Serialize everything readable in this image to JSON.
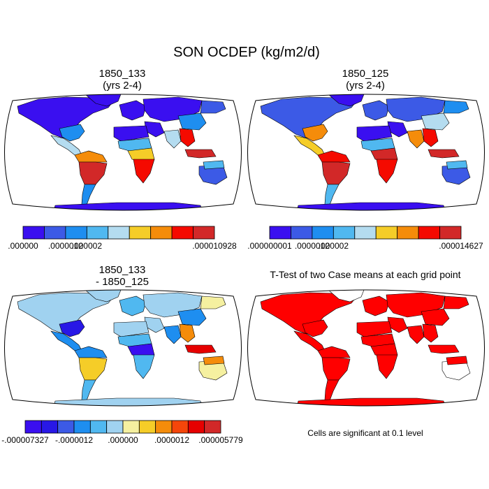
{
  "figure": {
    "title": "SON OCDEP (kg/m2/d)"
  },
  "colors": {
    "ocean": "#ffffff",
    "coast": "#000000",
    "significant": "#ff0000",
    "ramp_abs": [
      "#3a0ff0",
      "#3c5ae6",
      "#1e8ef0",
      "#50b8f0",
      "#b4dcf0",
      "#f5cd28",
      "#f58c0a",
      "#f50a00",
      "#d22828"
    ],
    "ramp_diff": [
      "#3a0ff0",
      "#2818e6",
      "#3c5ae6",
      "#1e8ef0",
      "#50b8f0",
      "#a0d2f0",
      "#f5f0a0",
      "#f5cd28",
      "#f58c0a",
      "#f5460a",
      "#e60000",
      "#d22828"
    ]
  },
  "chart_data": [
    {
      "type": "heatmap",
      "title": "1850_133",
      "subtitle": "(yrs 2-4)",
      "map": "world-robinson",
      "colorbar": {
        "bins": 9,
        "labels": [
          ".000000",
          ".0000012",
          ".000002",
          ".000010928"
        ],
        "label_bins": [
          0,
          2,
          3,
          9
        ]
      },
      "regions": [
        {
          "name": "North America",
          "bin": 0
        },
        {
          "name": "Southeastern US",
          "bin": 2
        },
        {
          "name": "Mexico and Central America",
          "bin": 4
        },
        {
          "name": "Northern South America",
          "bin": 6
        },
        {
          "name": "Amazon Basin",
          "bin": 8
        },
        {
          "name": "Southern South America",
          "bin": 2
        },
        {
          "name": "Greenland",
          "bin": 0
        },
        {
          "name": "Europe",
          "bin": 0
        },
        {
          "name": "Russia and Central Asia",
          "bin": 0
        },
        {
          "name": "Siberia",
          "bin": 1
        },
        {
          "name": "Middle East",
          "bin": 0
        },
        {
          "name": "Sahara",
          "bin": 0
        },
        {
          "name": "Sahel",
          "bin": 3
        },
        {
          "name": "Central Africa",
          "bin": 5
        },
        {
          "name": "Southern Africa",
          "bin": 7
        },
        {
          "name": "South Asia",
          "bin": 4
        },
        {
          "name": "Southeast Asia",
          "bin": 7
        },
        {
          "name": "China",
          "bin": 2
        },
        {
          "name": "Indonesia",
          "bin": 8
        },
        {
          "name": "Australia",
          "bin": 1
        },
        {
          "name": "Northern Australia",
          "bin": 3
        },
        {
          "name": "Antarctica",
          "bin": 0
        }
      ]
    },
    {
      "type": "heatmap",
      "title": "1850_125",
      "subtitle": "(yrs 2-4)",
      "map": "world-robinson",
      "colorbar": {
        "bins": 9,
        "labels": [
          ".000000001",
          ".0000012",
          ".000002",
          ".000014627"
        ],
        "label_bins": [
          0,
          2,
          3,
          9
        ]
      },
      "regions": [
        {
          "name": "North America",
          "bin": 1
        },
        {
          "name": "Southeastern US",
          "bin": 6
        },
        {
          "name": "Mexico and Central America",
          "bin": 5
        },
        {
          "name": "Northern South America",
          "bin": 7
        },
        {
          "name": "Amazon Basin",
          "bin": 8
        },
        {
          "name": "Southern South America",
          "bin": 3
        },
        {
          "name": "Greenland",
          "bin": 0
        },
        {
          "name": "Europe",
          "bin": 1
        },
        {
          "name": "Russia and Central Asia",
          "bin": 1
        },
        {
          "name": "Siberia",
          "bin": 2
        },
        {
          "name": "Middle East",
          "bin": 0
        },
        {
          "name": "Sahara",
          "bin": 0
        },
        {
          "name": "Sahel",
          "bin": 3
        },
        {
          "name": "Central Africa",
          "bin": 8
        },
        {
          "name": "Southern Africa",
          "bin": 7
        },
        {
          "name": "South Asia",
          "bin": 6
        },
        {
          "name": "Southeast Asia",
          "bin": 7
        },
        {
          "name": "China",
          "bin": 4
        },
        {
          "name": "Indonesia",
          "bin": 8
        },
        {
          "name": "Australia",
          "bin": 1
        },
        {
          "name": "Northern Australia",
          "bin": 3
        },
        {
          "name": "Antarctica",
          "bin": 0
        }
      ]
    },
    {
      "type": "heatmap",
      "title": "1850_133",
      "subtitle": "- 1850_125",
      "map": "world-robinson",
      "colorbar": {
        "bins": 12,
        "labels": [
          "-.000007327",
          "-.0000012",
          ".000000",
          ".0000012",
          ".000005779"
        ],
        "label_bins": [
          0,
          3,
          6,
          9,
          12
        ]
      },
      "regions": [
        {
          "name": "North America",
          "bin": 5
        },
        {
          "name": "Southeastern US",
          "bin": 1
        },
        {
          "name": "Mexico and Central America",
          "bin": 3
        },
        {
          "name": "Northern South America",
          "bin": 3
        },
        {
          "name": "Amazon Basin",
          "bin": 7
        },
        {
          "name": "Southern South America",
          "bin": 4
        },
        {
          "name": "Greenland",
          "bin": 5
        },
        {
          "name": "Europe",
          "bin": 4
        },
        {
          "name": "Russia and Central Asia",
          "bin": 5
        },
        {
          "name": "Siberia",
          "bin": 6
        },
        {
          "name": "Middle East",
          "bin": 5
        },
        {
          "name": "Sahara",
          "bin": 5
        },
        {
          "name": "Sahel",
          "bin": 4
        },
        {
          "name": "Central Africa",
          "bin": 0
        },
        {
          "name": "Southern Africa",
          "bin": 4
        },
        {
          "name": "South Asia",
          "bin": 3
        },
        {
          "name": "Southeast Asia",
          "bin": 8
        },
        {
          "name": "China",
          "bin": 3
        },
        {
          "name": "Indonesia",
          "bin": 10
        },
        {
          "name": "Australia",
          "bin": 6
        },
        {
          "name": "Northern Australia",
          "bin": 8
        },
        {
          "name": "Antarctica",
          "bin": 5
        }
      ]
    },
    {
      "type": "heatmap",
      "title": "T-Test of two Case means at each grid point",
      "caption": "Cells are significant at 0.1 level",
      "map": "world-robinson",
      "regions": [
        {
          "name": "North America",
          "significant": true
        },
        {
          "name": "Southeastern US",
          "significant": true
        },
        {
          "name": "Mexico and Central America",
          "significant": true
        },
        {
          "name": "Northern South America",
          "significant": true
        },
        {
          "name": "Amazon Basin",
          "significant": true
        },
        {
          "name": "Southern South America",
          "significant": true
        },
        {
          "name": "Greenland",
          "significant": false
        },
        {
          "name": "Europe",
          "significant": true
        },
        {
          "name": "Russia and Central Asia",
          "significant": true
        },
        {
          "name": "Siberia",
          "significant": true
        },
        {
          "name": "Middle East",
          "significant": true
        },
        {
          "name": "Sahara",
          "significant": true
        },
        {
          "name": "Sahel",
          "significant": true
        },
        {
          "name": "Central Africa",
          "significant": true
        },
        {
          "name": "Southern Africa",
          "significant": true
        },
        {
          "name": "South Asia",
          "significant": true
        },
        {
          "name": "Southeast Asia",
          "significant": true
        },
        {
          "name": "China",
          "significant": true
        },
        {
          "name": "Indonesia",
          "significant": true
        },
        {
          "name": "Australia",
          "significant": false
        },
        {
          "name": "Northern Australia",
          "significant": true
        },
        {
          "name": "Antarctica",
          "significant": true
        }
      ]
    }
  ]
}
